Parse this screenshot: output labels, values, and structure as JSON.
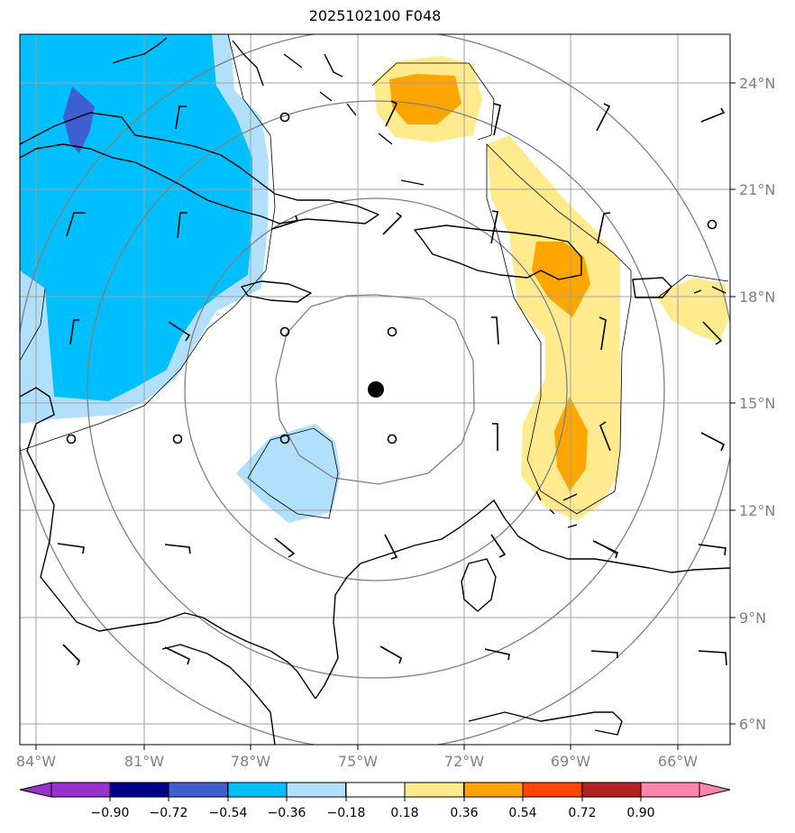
{
  "title": "2025102100 F048",
  "colors": {
    "neg_090": "#9932cc",
    "neg_072": "#00008b",
    "neg_054": "#3f5fcf",
    "neg_036": "#00bfff",
    "neg_018": "#b0e0fc",
    "neutral": "#ffffff",
    "pos_018": "#ffeb8e",
    "pos_036": "#ffa500",
    "pos_054": "#ff4500",
    "pos_072": "#b22222",
    "pos_090": "#ff85ad",
    "coast": "#000000",
    "grid": "#999999",
    "ring": "#808080"
  },
  "map": {
    "lon_labels": [
      "84°W",
      "81°W",
      "78°W",
      "75°W",
      "72°W",
      "69°W",
      "66°W"
    ],
    "lat_labels": [
      "24°N",
      "21°N",
      "18°N",
      "15°N",
      "12°N",
      "9°N",
      "6°N"
    ],
    "center_marker": "storm-center-dot"
  },
  "colorbar": {
    "labels": [
      "−0.90",
      "−0.72",
      "−0.54",
      "−0.36",
      "−0.18",
      "0.18",
      "0.36",
      "0.54",
      "0.72",
      "0.90"
    ]
  }
}
